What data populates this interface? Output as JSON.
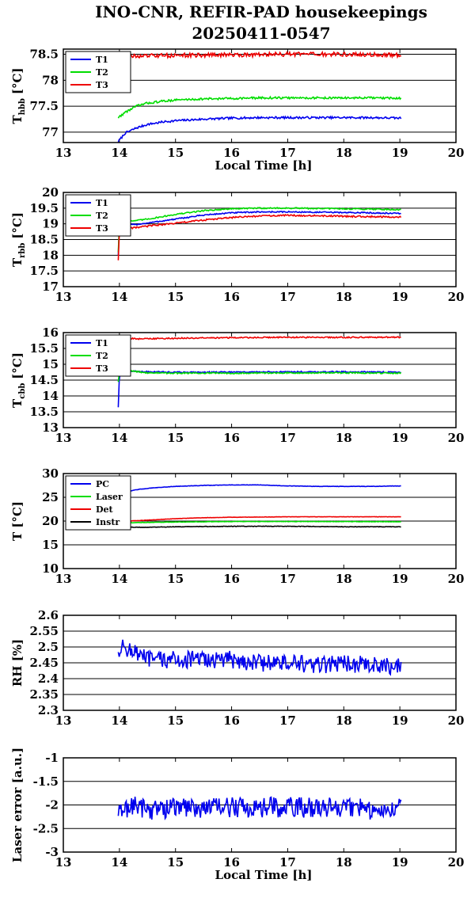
{
  "title_line1": "INO-CNR, REFIR-PAD housekeepings",
  "title_line2": "20250411-0547",
  "colors": {
    "blue": "#0000ee",
    "green": "#00dd00",
    "red": "#ee0000",
    "black": "#000000"
  },
  "chart_data": [
    {
      "type": "line",
      "ylabel_main": "T",
      "ylabel_sub": "hbb",
      "ylabel_unit": "[°C]",
      "xlabel": "Local Time [h]",
      "xlim": [
        13,
        20
      ],
      "xticks": [
        "13",
        "14",
        "15",
        "16",
        "17",
        "18",
        "19",
        "20"
      ],
      "ylim": [
        76.8,
        78.6
      ],
      "yticks": [
        "77",
        "77.5",
        "78",
        "78.5"
      ],
      "legend_position": "top-left",
      "series": [
        {
          "name": "T1",
          "color": "#0000ee",
          "points": [
            [
              13.98,
              76.82
            ],
            [
              14.1,
              76.98
            ],
            [
              14.3,
              77.08
            ],
            [
              14.5,
              77.15
            ],
            [
              14.8,
              77.2
            ],
            [
              15.0,
              77.22
            ],
            [
              15.5,
              77.25
            ],
            [
              16.0,
              77.27
            ],
            [
              16.5,
              77.28
            ],
            [
              17.0,
              77.28
            ],
            [
              17.5,
              77.28
            ],
            [
              18.0,
              77.28
            ],
            [
              18.5,
              77.28
            ],
            [
              19.02,
              77.27
            ]
          ],
          "noise": 0.02
        },
        {
          "name": "T2",
          "color": "#00dd00",
          "points": [
            [
              13.98,
              77.28
            ],
            [
              14.1,
              77.38
            ],
            [
              14.3,
              77.5
            ],
            [
              14.5,
              77.56
            ],
            [
              14.8,
              77.6
            ],
            [
              15.0,
              77.62
            ],
            [
              15.5,
              77.64
            ],
            [
              16.0,
              77.65
            ],
            [
              16.5,
              77.66
            ],
            [
              17.0,
              77.66
            ],
            [
              17.5,
              77.66
            ],
            [
              18.0,
              77.66
            ],
            [
              18.5,
              77.66
            ],
            [
              19.02,
              77.65
            ]
          ],
          "noise": 0.02
        },
        {
          "name": "T3",
          "color": "#ee0000",
          "points": [
            [
              13.98,
              78.28
            ],
            [
              14.0,
              78.45
            ],
            [
              14.5,
              78.47
            ],
            [
              15.0,
              78.48
            ],
            [
              16.0,
              78.49
            ],
            [
              17.0,
              78.5
            ],
            [
              18.0,
              78.5
            ],
            [
              19.02,
              78.48
            ]
          ],
          "noise": 0.04
        }
      ]
    },
    {
      "type": "line",
      "ylabel_main": "T",
      "ylabel_sub": "rbb",
      "ylabel_unit": "[°C]",
      "xlabel": "",
      "xlim": [
        13,
        20
      ],
      "xticks": [
        "13",
        "14",
        "15",
        "16",
        "17",
        "18",
        "19",
        "20"
      ],
      "ylim": [
        17,
        20
      ],
      "yticks": [
        "17",
        "17.5",
        "18",
        "18.5",
        "19",
        "19.5",
        "20"
      ],
      "legend_position": "top-left",
      "series": [
        {
          "name": "T1",
          "color": "#0000ee",
          "points": [
            [
              13.98,
              18.0
            ],
            [
              14.0,
              18.95
            ],
            [
              14.3,
              18.98
            ],
            [
              14.6,
              19.05
            ],
            [
              15.0,
              19.15
            ],
            [
              15.5,
              19.28
            ],
            [
              16.0,
              19.35
            ],
            [
              16.5,
              19.38
            ],
            [
              17.0,
              19.38
            ],
            [
              17.5,
              19.37
            ],
            [
              18.0,
              19.36
            ],
            [
              18.5,
              19.35
            ],
            [
              19.02,
              19.33
            ]
          ],
          "noise": 0.02
        },
        {
          "name": "T2",
          "color": "#00dd00",
          "points": [
            [
              13.98,
              18.1
            ],
            [
              14.0,
              19.08
            ],
            [
              14.3,
              19.1
            ],
            [
              14.6,
              19.18
            ],
            [
              15.0,
              19.3
            ],
            [
              15.5,
              19.42
            ],
            [
              16.0,
              19.48
            ],
            [
              16.5,
              19.5
            ],
            [
              17.0,
              19.5
            ],
            [
              17.5,
              19.49
            ],
            [
              18.0,
              19.48
            ],
            [
              18.5,
              19.47
            ],
            [
              19.02,
              19.45
            ]
          ],
          "noise": 0.02
        },
        {
          "name": "T3",
          "color": "#ee0000",
          "points": [
            [
              13.98,
              17.85
            ],
            [
              14.0,
              18.82
            ],
            [
              14.3,
              18.88
            ],
            [
              14.6,
              18.95
            ],
            [
              15.0,
              19.02
            ],
            [
              15.5,
              19.12
            ],
            [
              16.0,
              19.2
            ],
            [
              16.5,
              19.25
            ],
            [
              17.0,
              19.27
            ],
            [
              17.5,
              19.26
            ],
            [
              18.0,
              19.24
            ],
            [
              18.5,
              19.23
            ],
            [
              19.02,
              19.21
            ]
          ],
          "noise": 0.025
        }
      ]
    },
    {
      "type": "line",
      "ylabel_main": "T",
      "ylabel_sub": "cbb",
      "ylabel_unit": "[°C]",
      "xlabel": "",
      "xlim": [
        13,
        20
      ],
      "xticks": [
        "13",
        "14",
        "15",
        "16",
        "17",
        "18",
        "19",
        "20"
      ],
      "ylim": [
        13,
        16
      ],
      "yticks": [
        "13",
        "13.5",
        "14",
        "14.5",
        "15",
        "15.5",
        "16"
      ],
      "legend_position": "top-left",
      "series": [
        {
          "name": "T1",
          "color": "#0000ee",
          "points": [
            [
              13.98,
              13.65
            ],
            [
              14.0,
              14.7
            ],
            [
              14.05,
              14.8
            ],
            [
              14.5,
              14.76
            ],
            [
              15.0,
              14.75
            ],
            [
              16.0,
              14.75
            ],
            [
              17.0,
              14.76
            ],
            [
              18.0,
              14.76
            ],
            [
              19.02,
              14.75
            ]
          ],
          "noise": 0.02
        },
        {
          "name": "T2",
          "color": "#00dd00",
          "points": [
            [
              13.98,
              14.45
            ],
            [
              14.0,
              14.78
            ],
            [
              14.05,
              14.82
            ],
            [
              14.5,
              14.73
            ],
            [
              15.0,
              14.72
            ],
            [
              16.0,
              14.72
            ],
            [
              17.0,
              14.73
            ],
            [
              18.0,
              14.73
            ],
            [
              19.02,
              14.72
            ]
          ],
          "noise": 0.02
        },
        {
          "name": "T3",
          "color": "#ee0000",
          "points": [
            [
              13.98,
              15.9
            ],
            [
              14.0,
              15.85
            ],
            [
              14.3,
              15.8
            ],
            [
              15.0,
              15.82
            ],
            [
              16.0,
              15.84
            ],
            [
              17.0,
              15.85
            ],
            [
              18.0,
              15.85
            ],
            [
              19.02,
              15.85
            ]
          ],
          "noise": 0.02
        }
      ]
    },
    {
      "type": "line",
      "ylabel_main": "T [°C]",
      "ylabel_sub": "",
      "ylabel_unit": "",
      "xlabel": "",
      "xlim": [
        13,
        20
      ],
      "xticks": [
        "13",
        "14",
        "15",
        "16",
        "17",
        "18",
        "19",
        "20"
      ],
      "ylim": [
        10,
        30
      ],
      "yticks": [
        "10",
        "15",
        "20",
        "25",
        "30"
      ],
      "legend_position": "top-left",
      "series": [
        {
          "name": "PC",
          "color": "#0000ee",
          "points": [
            [
              13.98,
              25.8
            ],
            [
              14.3,
              26.6
            ],
            [
              14.6,
              27.0
            ],
            [
              15.0,
              27.3
            ],
            [
              15.5,
              27.5
            ],
            [
              16.0,
              27.6
            ],
            [
              16.5,
              27.6
            ],
            [
              17.0,
              27.4
            ],
            [
              17.5,
              27.3
            ],
            [
              18.0,
              27.3
            ],
            [
              18.5,
              27.3
            ],
            [
              19.02,
              27.4
            ]
          ],
          "noise": 0.04
        },
        {
          "name": "Laser",
          "color": "#00dd00",
          "points": [
            [
              13.98,
              19.6
            ],
            [
              14.5,
              19.7
            ],
            [
              15.0,
              19.8
            ],
            [
              16.0,
              19.9
            ],
            [
              17.0,
              19.9
            ],
            [
              18.0,
              19.9
            ],
            [
              19.02,
              19.85
            ]
          ],
          "noise": 0.04
        },
        {
          "name": "Det",
          "color": "#ee0000",
          "points": [
            [
              13.98,
              19.9
            ],
            [
              14.5,
              20.2
            ],
            [
              15.0,
              20.5
            ],
            [
              15.5,
              20.7
            ],
            [
              16.0,
              20.8
            ],
            [
              17.0,
              20.9
            ],
            [
              18.0,
              20.9
            ],
            [
              19.02,
              20.9
            ]
          ],
          "noise": 0.03
        },
        {
          "name": "Instr",
          "color": "#000000",
          "points": [
            [
              13.98,
              18.7
            ],
            [
              14.5,
              18.7
            ],
            [
              15.0,
              18.8
            ],
            [
              16.0,
              18.9
            ],
            [
              17.0,
              18.9
            ],
            [
              18.0,
              18.8
            ],
            [
              19.02,
              18.8
            ]
          ],
          "noise": 0.05
        }
      ]
    },
    {
      "type": "line",
      "ylabel_main": "RH [%]",
      "ylabel_sub": "",
      "ylabel_unit": "",
      "xlabel": "",
      "xlim": [
        13,
        20
      ],
      "xticks": [
        "13",
        "14",
        "15",
        "16",
        "17",
        "18",
        "19",
        "20"
      ],
      "ylim": [
        2.3,
        2.6
      ],
      "yticks": [
        "2.3",
        "2.35",
        "2.4",
        "2.45",
        "2.5",
        "2.55",
        "2.6"
      ],
      "legend_position": "none",
      "series": [
        {
          "name": "",
          "color": "#0000ee",
          "points": [
            [
              13.98,
              2.49
            ],
            [
              14.1,
              2.5
            ],
            [
              14.5,
              2.46
            ],
            [
              15.0,
              2.46
            ],
            [
              15.5,
              2.46
            ],
            [
              16.0,
              2.46
            ],
            [
              16.5,
              2.45
            ],
            [
              17.0,
              2.45
            ],
            [
              17.5,
              2.44
            ],
            [
              18.0,
              2.45
            ],
            [
              18.5,
              2.44
            ],
            [
              19.02,
              2.44
            ]
          ],
          "noise": 0.028
        }
      ]
    },
    {
      "type": "line",
      "ylabel_main": "Laser error [a.u.]",
      "ylabel_sub": "",
      "ylabel_unit": "",
      "xlabel": "Local Time [h]",
      "xlim": [
        13,
        20
      ],
      "xticks": [
        "13",
        "14",
        "15",
        "16",
        "17",
        "18",
        "19",
        "20"
      ],
      "ylim": [
        -3,
        -1
      ],
      "yticks": [
        "-3",
        "-2.5",
        "-2",
        "-1.5",
        "-1"
      ],
      "legend_position": "none",
      "series": [
        {
          "name": "",
          "color": "#0000ee",
          "points": [
            [
              13.98,
              -2.2
            ],
            [
              14.2,
              -2.0
            ],
            [
              14.6,
              -2.1
            ],
            [
              15.0,
              -2.05
            ],
            [
              15.5,
              -2.05
            ],
            [
              16.0,
              -2.05
            ],
            [
              16.5,
              -2.05
            ],
            [
              17.0,
              -2.05
            ],
            [
              17.5,
              -2.05
            ],
            [
              18.0,
              -2.05
            ],
            [
              18.5,
              -2.1
            ],
            [
              19.02,
              -2.05
            ]
          ],
          "noise": 0.22
        }
      ]
    }
  ]
}
